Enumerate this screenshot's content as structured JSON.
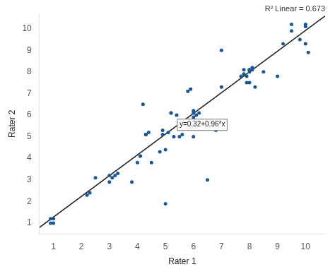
{
  "chart_data": {
    "type": "scatter",
    "subtitle": "R² Linear = 0.673",
    "xlabel": "Rater 1",
    "ylabel": "Rater 2",
    "series": [
      {
        "type": "scatter",
        "color": "#1a5799",
        "x": [
          0.9,
          0.9,
          1.0,
          1.0,
          2.2,
          2.3,
          2.5,
          3.0,
          3.0,
          3.1,
          3.2,
          3.3,
          3.8,
          4.0,
          4.1,
          4.1,
          4.2,
          4.3,
          4.3,
          4.4,
          4.5,
          4.8,
          4.9,
          4.9,
          5.0,
          5.0,
          5.1,
          5.2,
          5.2,
          5.3,
          5.4,
          5.5,
          5.6,
          5.8,
          5.9,
          6.0,
          6.0,
          6.0,
          6.0,
          6.1,
          6.2,
          6.5,
          6.8,
          7.0,
          7.0,
          7.7,
          7.8,
          7.8,
          7.9,
          7.9,
          8.0,
          8.0,
          8.0,
          8.0,
          8.1,
          8.1,
          8.2,
          8.5,
          9.0,
          9.2,
          9.5,
          9.5,
          9.8,
          10.0,
          10.0,
          10.0,
          10.1
        ],
        "values": [
          1.0,
          1.2,
          1.2,
          1.0,
          2.3,
          2.4,
          3.1,
          3.2,
          2.9,
          3.1,
          3.2,
          3.3,
          2.9,
          3.8,
          4.1,
          4.1,
          6.5,
          5.1,
          5.1,
          5.2,
          3.8,
          4.3,
          5.3,
          5.1,
          1.9,
          4.4,
          5.2,
          6.1,
          6.1,
          5.0,
          6.0,
          5.0,
          5.1,
          7.1,
          7.2,
          5.9,
          5.0,
          6.1,
          6.2,
          6.0,
          6.1,
          3.0,
          5.3,
          7.3,
          9.0,
          7.8,
          8.1,
          7.9,
          7.8,
          7.5,
          8.1,
          8.0,
          8.1,
          7.5,
          8.1,
          8.2,
          7.3,
          8.0,
          7.8,
          9.3,
          9.9,
          10.2,
          9.5,
          10.2,
          10.1,
          9.3,
          8.9
        ]
      },
      {
        "type": "line",
        "color": "#1a1a1a",
        "x": [
          0.5,
          10.7
        ],
        "values": [
          0.8,
          10.592
        ]
      }
    ],
    "annotations": [
      {
        "text": "y=0.32+0.96*x",
        "x": 5.5,
        "y": 5.55
      }
    ],
    "xlim": [
      0.5,
      10.7
    ],
    "ylim": [
      0.5,
      10.7
    ],
    "xticks": [
      1,
      2,
      3,
      4,
      5,
      6,
      7,
      8,
      9,
      10
    ],
    "yticks": [
      1,
      2,
      3,
      4,
      5,
      6,
      7,
      8,
      9,
      10
    ],
    "grid": false
  }
}
